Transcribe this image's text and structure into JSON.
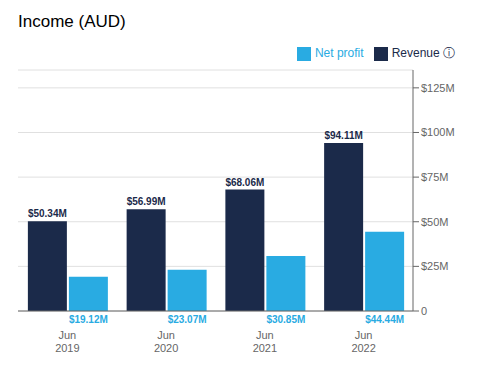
{
  "chart_data": {
    "type": "bar",
    "title": "Income (AUD)",
    "categories": [
      "Jun 2019",
      "Jun 2020",
      "Jun 2021",
      "Jun 2022"
    ],
    "series": [
      {
        "name": "Revenue ⓘ",
        "color": "#1b2a4a",
        "values": [
          50.34,
          56.99,
          68.06,
          94.11
        ],
        "value_labels": [
          "$50.34M",
          "$56.99M",
          "$68.06M",
          "$94.11M"
        ]
      },
      {
        "name": "Net profit",
        "color": "#29abe2",
        "values": [
          19.12,
          23.07,
          30.85,
          44.44
        ],
        "value_labels": [
          "$19.12M",
          "$23.07M",
          "$30.85M",
          "$44.44M"
        ]
      }
    ],
    "ylim": [
      0,
      135
    ],
    "yticks": [
      0,
      {
        "value": 25,
        "label": "$25M"
      },
      {
        "value": 50,
        "label": "$50M"
      },
      {
        "value": 75,
        "label": "$75M"
      },
      {
        "value": 100,
        "label": "$100M"
      },
      {
        "value": 125,
        "label": "$125M"
      }
    ],
    "grid": true,
    "legend": "top",
    "data_labels": true
  }
}
